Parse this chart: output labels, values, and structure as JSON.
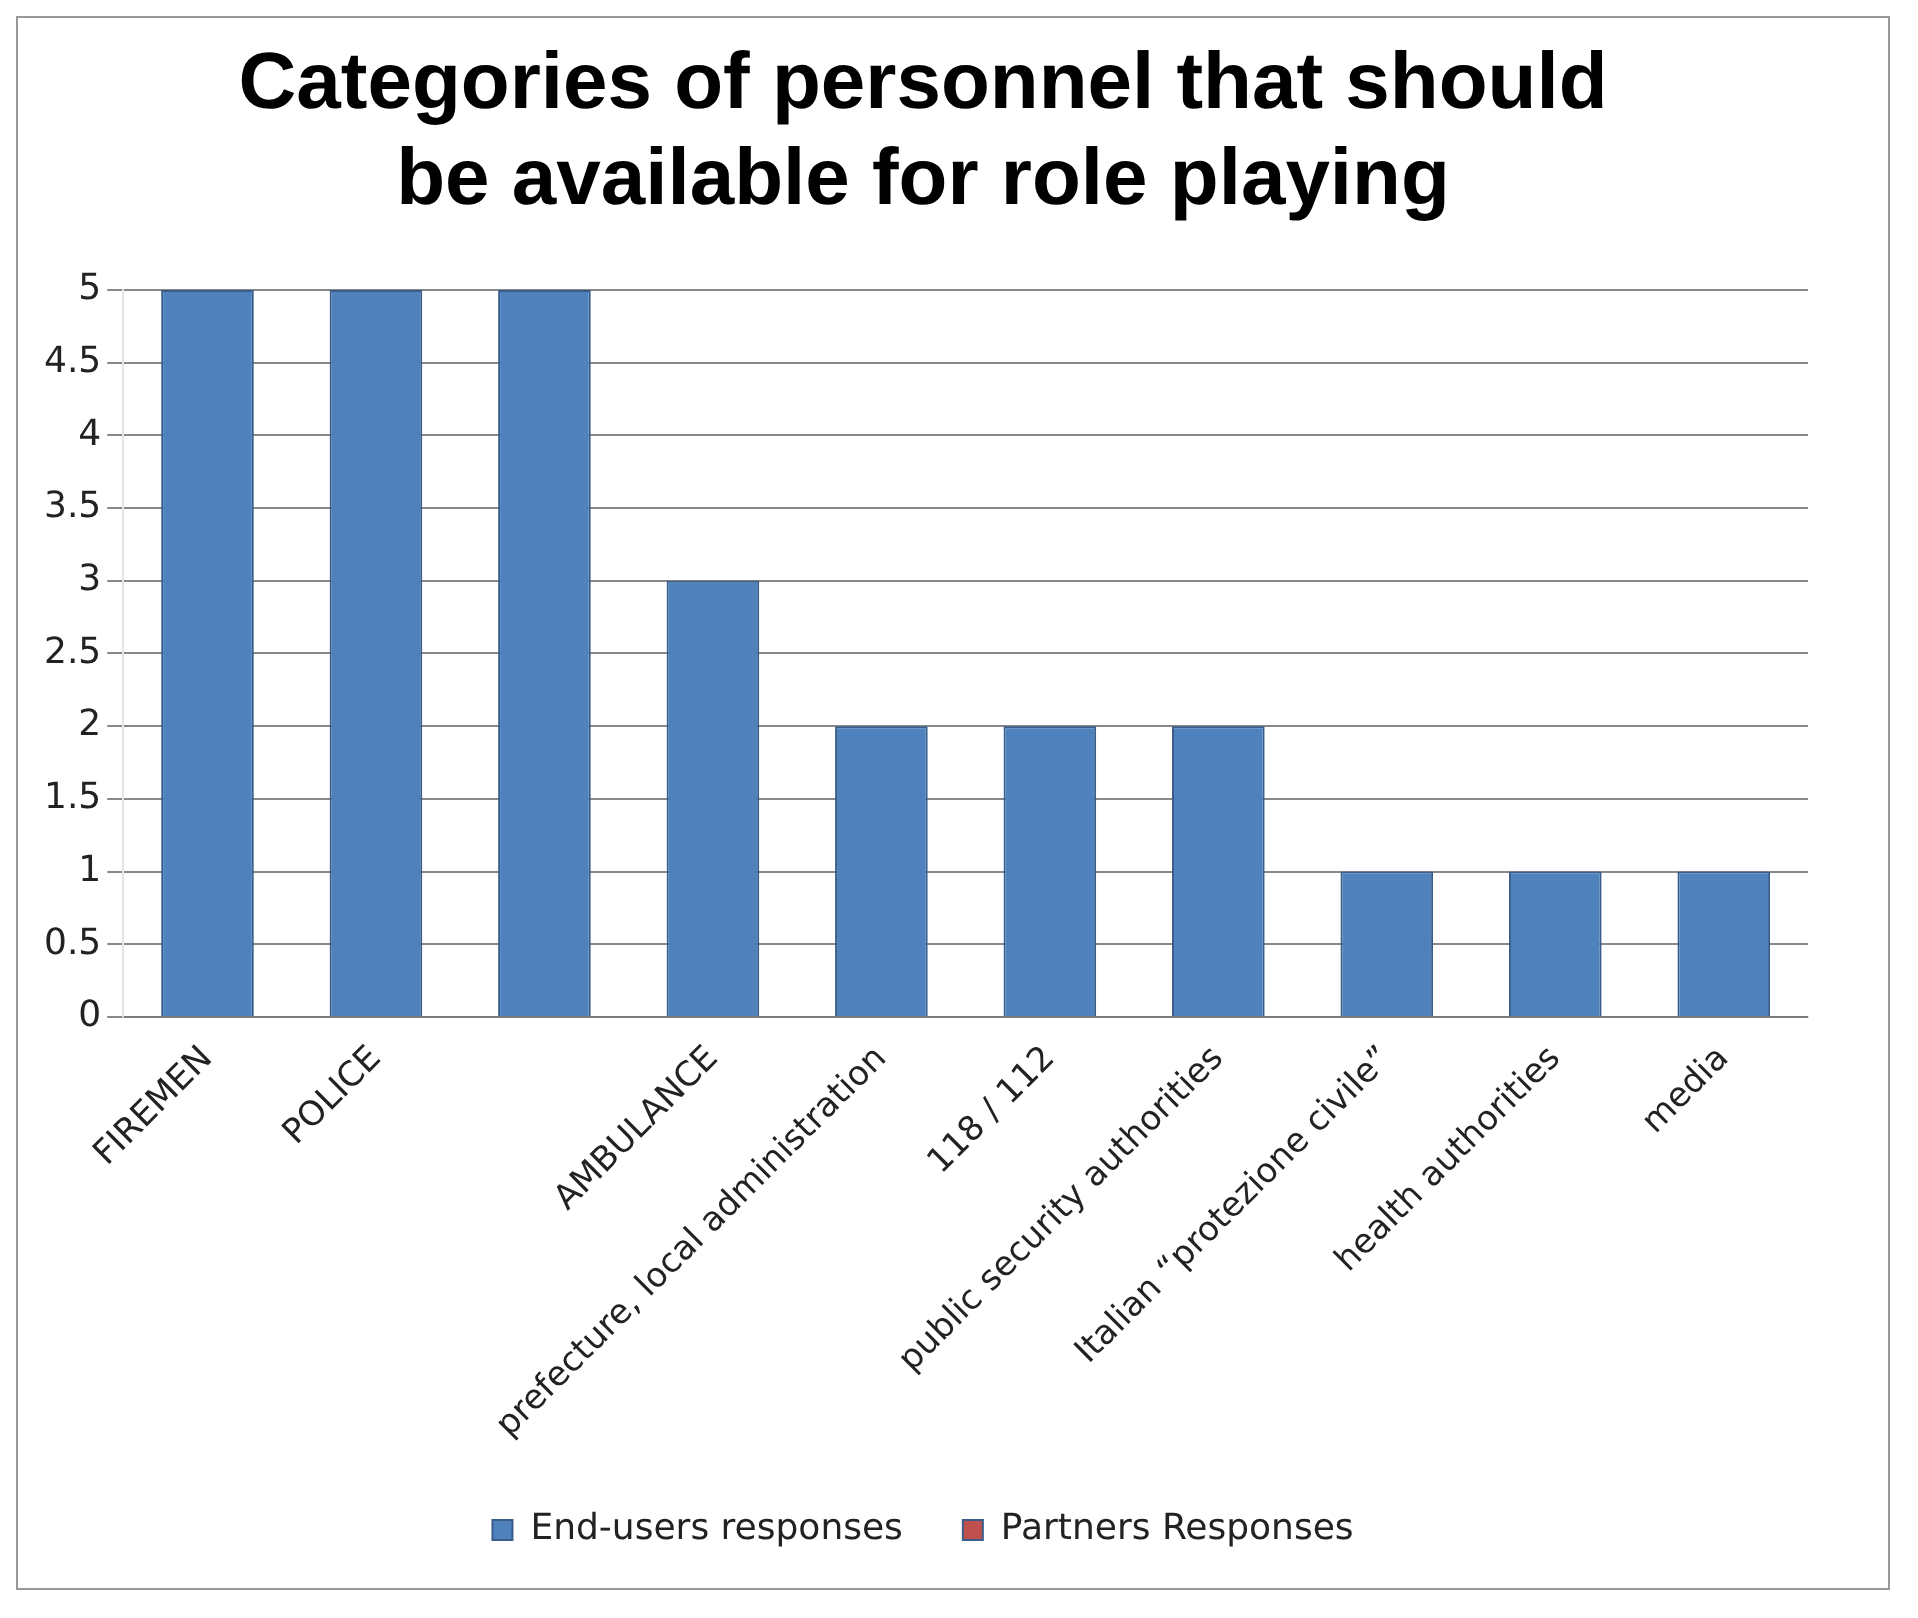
{
  "chart_data": {
    "type": "bar",
    "title": "Categories of personnel that should be available for role playing",
    "categories": [
      "FIREMEN",
      "POLICE",
      null,
      "AMBULANCE",
      "prefecture, local administration",
      "118 / 112",
      "public security authorities",
      "Italian “protezione civile”",
      "health authorities",
      "media"
    ],
    "series": [
      {
        "name": "End-users responses",
        "color": "#4f81bd",
        "values": [
          5,
          5,
          5,
          3,
          2,
          2,
          2,
          1,
          1,
          1
        ]
      },
      {
        "name": "Partners Responses",
        "color": "#c0504d",
        "values": [
          null,
          null,
          null,
          null,
          null,
          null,
          null,
          null,
          null,
          null
        ]
      }
    ],
    "ylim": [
      0,
      5
    ],
    "yticks": [
      0,
      0.5,
      1,
      1.5,
      2,
      2.5,
      3,
      3.5,
      4,
      4.5,
      5
    ],
    "grid": "y",
    "legend": "bottom"
  }
}
